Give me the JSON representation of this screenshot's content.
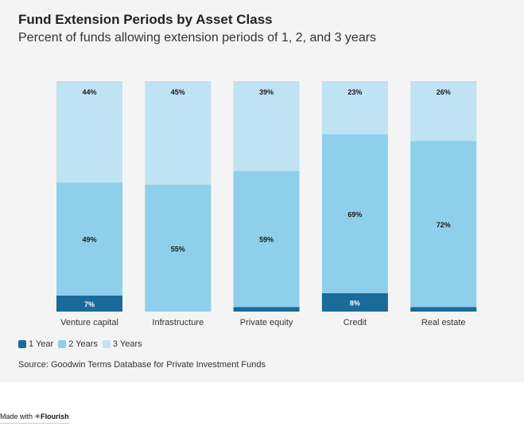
{
  "chart_data": {
    "type": "bar",
    "stacked": true,
    "title": "Fund Extension Periods by Asset Class",
    "subtitle": "Percent of funds allowing extension periods of 1, 2, and 3 years",
    "categories": [
      "Venture capital",
      "Infrastructure",
      "Private equity",
      "Credit",
      "Real estate"
    ],
    "series": [
      {
        "name": "1 Year",
        "values": [
          7,
          0,
          2,
          8,
          2
        ],
        "color": "#1a6a9a",
        "labels": [
          "7%",
          "",
          "",
          "8%",
          ""
        ]
      },
      {
        "name": "2 Years",
        "values": [
          49,
          55,
          59,
          69,
          72
        ],
        "color": "#8ed0eb",
        "labels": [
          "49%",
          "55%",
          "59%",
          "69%",
          "72%"
        ]
      },
      {
        "name": "3 Years",
        "values": [
          44,
          45,
          39,
          23,
          26
        ],
        "color": "#bfe3f3",
        "labels": [
          "44%",
          "45%",
          "39%",
          "23%",
          "26%"
        ]
      }
    ],
    "ylim": [
      0,
      100
    ],
    "legend": "bottom-left",
    "grid": false
  },
  "source": "Source: Goodwin Terms Database for Private Investment Funds",
  "footer": {
    "prefix": "Made with",
    "brand": "Flourish"
  }
}
